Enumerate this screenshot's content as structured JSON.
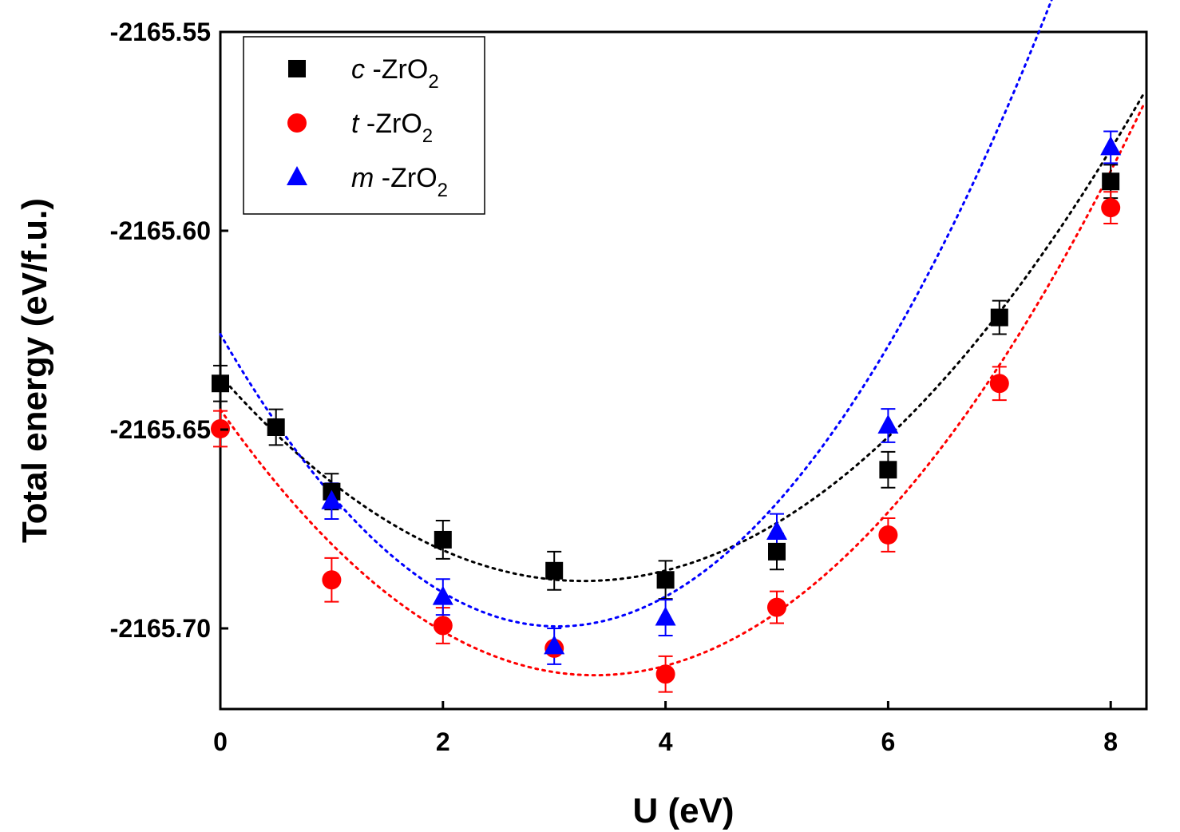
{
  "chart_data": {
    "type": "scatter",
    "title": "",
    "xlabel": "U (eV)",
    "ylabel": "Total energy (eV/f.u.)",
    "xlim": [
      0,
      8.3
    ],
    "ylim": [
      -2165.72,
      -2165.55
    ],
    "xticks": [
      0,
      2,
      4,
      6,
      8
    ],
    "xtick_labels": [
      "0",
      "2",
      "4",
      "6",
      "8"
    ],
    "yticks": [
      -2165.55,
      -2165.6,
      -2165.65,
      -2165.7
    ],
    "ytick_labels": [
      "-2165.55",
      "-2165.60",
      "-2165.65",
      "-2165.70"
    ],
    "legend_position": "top-left",
    "series": [
      {
        "name": "c -ZrO2",
        "legend_italic": "c",
        "legend_rest": " -ZrO",
        "legend_sub": "2",
        "marker": "square",
        "color": "#000000",
        "x": [
          0,
          0.5,
          1,
          2,
          3,
          4,
          5,
          6,
          7,
          8
        ],
        "y": [
          -2165.6384,
          -2165.6494,
          -2165.6656,
          -2165.6777,
          -2165.6855,
          -2165.6878,
          -2165.6807,
          -2165.6601,
          -2165.6218,
          -2165.5876
        ],
        "error": [
          0.0045,
          0.0045,
          0.0045,
          0.0048,
          0.0048,
          0.0048,
          0.0045,
          0.0045,
          0.0042,
          0.0042
        ],
        "fit_x": [
          0,
          8.3
        ],
        "fit_coeffs": [
          -2165.6365,
          -0.0316,
          0.00484
        ]
      },
      {
        "name": "t -ZrO2",
        "legend_italic": "t",
        "legend_rest": " -ZrO",
        "legend_sub": "2",
        "marker": "circle",
        "color": "#ff0000",
        "x": [
          0,
          1,
          2,
          3,
          4,
          5,
          6,
          7,
          8
        ],
        "y": [
          -2165.6498,
          -2165.6878,
          -2165.6993,
          -2165.705,
          -2165.7115,
          -2165.6947,
          -2165.6765,
          -2165.6384,
          -2165.5942
        ],
        "error": [
          0.0045,
          0.0055,
          0.0045,
          0.0,
          0.0045,
          0.004,
          0.0042,
          0.0042,
          0.004
        ],
        "fit_x": [
          0,
          8.3
        ],
        "fit_coeffs": [
          -2165.645,
          -0.0397,
          0.0059
        ]
      },
      {
        "name": "m -ZrO2",
        "legend_italic": "m",
        "legend_rest": " -ZrO",
        "legend_sub": "2",
        "marker": "triangle",
        "color": "#0000ff",
        "x": [
          1,
          2,
          3,
          4,
          5,
          6,
          8
        ],
        "y": [
          -2165.668,
          -2165.6921,
          -2165.7045,
          -2165.6973,
          -2165.6757,
          -2165.649,
          -2165.579
        ],
        "error": [
          0.0045,
          0.0045,
          0.0045,
          0.0045,
          0.0045,
          0.0042,
          0.004
        ],
        "fit_x": [
          0,
          8.3
        ],
        "fit_coeffs": [
          -2165.626,
          -0.0485,
          0.008
        ]
      }
    ]
  }
}
